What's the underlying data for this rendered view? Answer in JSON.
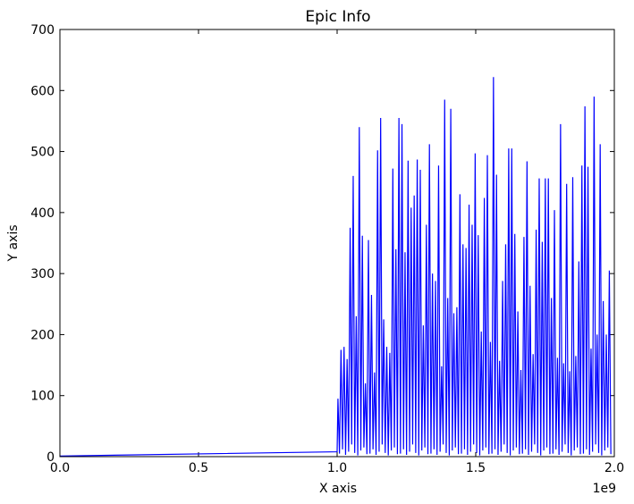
{
  "chart_data": {
    "type": "line",
    "title": "Epic Info",
    "xlabel": "X axis",
    "ylabel": "Y axis",
    "x_offset_label": "1e9",
    "color": "#0000ff",
    "x": [
      0,
      1000000000.0,
      1003000000.0,
      1008500000.0,
      1014000000.0,
      1019500000.0,
      1025000000.0,
      1030500000.0,
      1036000000.0,
      1041500000.0,
      1047000000.0,
      1052500000.0,
      1058000000.0,
      1063500000.0,
      1069000000.0,
      1074500000.0,
      1080000000.0,
      1085500000.0,
      1091000000.0,
      1096500000.0,
      1102000000.0,
      1107500000.0,
      1113000000.0,
      1118500000.0,
      1124000000.0,
      1129500000.0,
      1135000000.0,
      1140500000.0,
      1146000000.0,
      1151500000.0,
      1157000000.0,
      1162500000.0,
      1168000000.0,
      1173500000.0,
      1179000000.0,
      1184500000.0,
      1190000000.0,
      1195500000.0,
      1201000000.0,
      1206500000.0,
      1212000000.0,
      1217500000.0,
      1223000000.0,
      1228500000.0,
      1234000000.0,
      1239500000.0,
      1245000000.0,
      1250500000.0,
      1256000000.0,
      1261500000.0,
      1267000000.0,
      1272500000.0,
      1278000000.0,
      1283500000.0,
      1289000000.0,
      1294500000.0,
      1300000000.0,
      1305500000.0,
      1311000000.0,
      1316500000.0,
      1322000000.0,
      1327500000.0,
      1333000000.0,
      1338500000.0,
      1344000000.0,
      1349500000.0,
      1355000000.0,
      1360500000.0,
      1366000000.0,
      1371500000.0,
      1377000000.0,
      1382500000.0,
      1388000000.0,
      1393500000.0,
      1399000000.0,
      1404500000.0,
      1410000000.0,
      1415500000.0,
      1421000000.0,
      1426500000.0,
      1432000000.0,
      1437500000.0,
      1443000000.0,
      1448500000.0,
      1454000000.0,
      1459500000.0,
      1465000000.0,
      1470500000.0,
      1476000000.0,
      1481500000.0,
      1487000000.0,
      1492500000.0,
      1498000000.0,
      1503500000.0,
      1509000000.0,
      1514500000.0,
      1520000000.0,
      1525500000.0,
      1531000000.0,
      1536500000.0,
      1542000000.0,
      1547500000.0,
      1553000000.0,
      1558500000.0,
      1564000000.0,
      1569500000.0,
      1575000000.0,
      1580500000.0,
      1586000000.0,
      1591500000.0,
      1597000000.0,
      1602500000.0,
      1608000000.0,
      1613500000.0,
      1619000000.0,
      1624500000.0,
      1630000000.0,
      1635500000.0,
      1641000000.0,
      1646500000.0,
      1652000000.0,
      1657500000.0,
      1663000000.0,
      1668500000.0,
      1674000000.0,
      1679500000.0,
      1685000000.0,
      1690500000.0,
      1696000000.0,
      1701500000.0,
      1707000000.0,
      1712500000.0,
      1718000000.0,
      1723500000.0,
      1729000000.0,
      1734500000.0,
      1740000000.0,
      1745500000.0,
      1751000000.0,
      1756500000.0,
      1762000000.0,
      1767500000.0,
      1773000000.0,
      1778500000.0,
      1784000000.0,
      1789500000.0,
      1795000000.0,
      1800500000.0,
      1806000000.0,
      1811500000.0,
      1817000000.0,
      1822500000.0,
      1828000000.0,
      1833500000.0,
      1839000000.0,
      1844500000.0,
      1850000000.0,
      1855500000.0,
      1861000000.0,
      1866500000.0,
      1872000000.0,
      1877500000.0,
      1883000000.0,
      1888500000.0,
      1894000000.0,
      1899500000.0,
      1905000000.0,
      1910500000.0,
      1916000000.0,
      1921500000.0,
      1927000000.0,
      1932500000.0,
      1938000000.0,
      1943500000.0,
      1949000000.0,
      1954500000.0,
      1960000000.0,
      1965500000.0,
      1971000000.0,
      1976500000.0,
      1982000000.0,
      1987500000.0
    ],
    "values": [
      1,
      8,
      95,
      5,
      175,
      12,
      180,
      3,
      160,
      8,
      375,
      20,
      460,
      6,
      230,
      2,
      540,
      10,
      362,
      15,
      120,
      4,
      355,
      5,
      265,
      12,
      138,
      3,
      502,
      8,
      555,
      20,
      225,
      6,
      180,
      2,
      170,
      10,
      472,
      15,
      340,
      4,
      555,
      5,
      545,
      12,
      335,
      3,
      485,
      8,
      408,
      20,
      428,
      6,
      487,
      2,
      470,
      10,
      215,
      15,
      380,
      4,
      512,
      5,
      300,
      12,
      288,
      3,
      477,
      8,
      148,
      20,
      585,
      6,
      260,
      2,
      570,
      10,
      235,
      15,
      245,
      4,
      430,
      5,
      348,
      12,
      342,
      3,
      413,
      8,
      380,
      20,
      497,
      6,
      363,
      2,
      205,
      10,
      424,
      15,
      494,
      4,
      188,
      5,
      622,
      12,
      462,
      3,
      157,
      8,
      288,
      20,
      348,
      6,
      505,
      2,
      505,
      10,
      365,
      15,
      238,
      4,
      142,
      5,
      360,
      12,
      484,
      3,
      280,
      8,
      168,
      20,
      372,
      6,
      456,
      2,
      352,
      10,
      456,
      15,
      456,
      4,
      260,
      5,
      404,
      12,
      162,
      3,
      545,
      8,
      153,
      20,
      447,
      6,
      140,
      2,
      458,
      10,
      165,
      15,
      320,
      4,
      477,
      5,
      574,
      12,
      475,
      3,
      177,
      8,
      590,
      20,
      200,
      6,
      512,
      2,
      255,
      10,
      200,
      15,
      305,
      4
    ],
    "xlim": [
      0,
      2000000000
    ],
    "xticks": [
      {
        "value": 0,
        "label": "0.0"
      },
      {
        "value": 500000000,
        "label": "0.5"
      },
      {
        "value": 1000000000,
        "label": "1.0"
      },
      {
        "value": 1500000000,
        "label": "1.5"
      },
      {
        "value": 2000000000,
        "label": "2.0"
      }
    ],
    "ylim": [
      0,
      700
    ],
    "yticks": [
      0,
      100,
      200,
      300,
      400,
      500,
      600,
      700
    ]
  }
}
